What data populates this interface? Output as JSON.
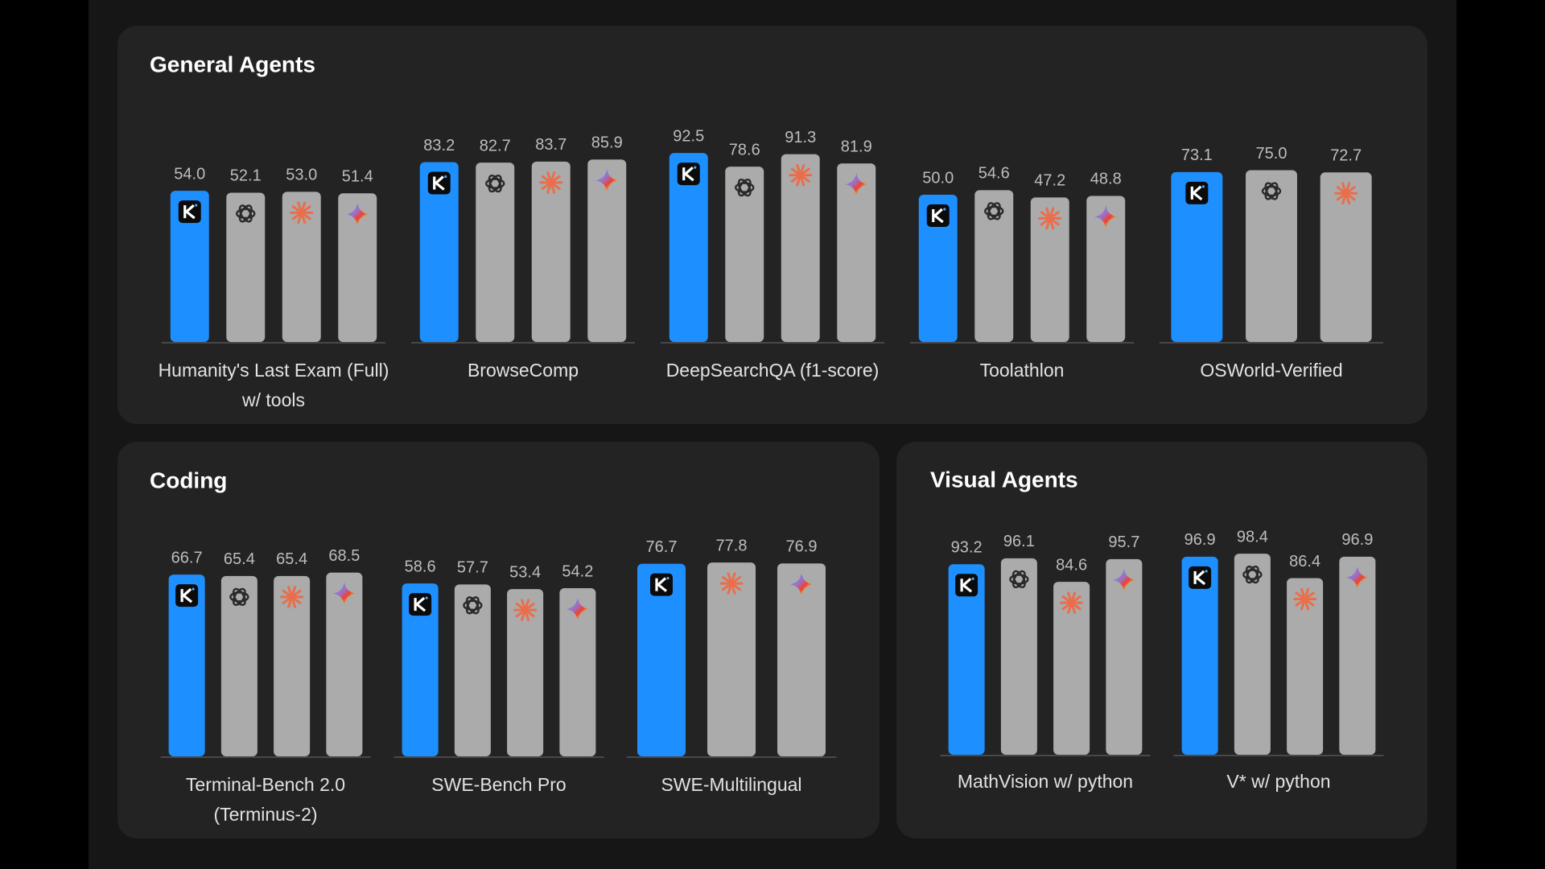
{
  "chart_data": [
    {
      "type": "bar",
      "title": "General Agents",
      "categories": [
        "Humanity's Last Exam (Full)\nw/ tools",
        "BrowseComp",
        "DeepSearchQA (f1-score)",
        "Toolathlon",
        "OSWorld-Verified"
      ],
      "ylim": [
        -100,
        100
      ],
      "series": [
        {
          "color": "#1e8fff",
          "values": [
            54.0,
            83.2,
            92.5,
            50.0,
            73.1
          ],
          "value_labels": [
            "54.0",
            "83.2",
            "92.5",
            "50.0",
            "73.1"
          ]
        },
        {
          "color": "#ababab",
          "values": [
            52.1,
            82.7,
            78.6,
            54.6,
            75.0
          ],
          "value_labels": [
            "52.1",
            "82.7",
            "78.6",
            "54.6",
            "75.0"
          ]
        },
        {
          "color": "#ababab",
          "values": [
            53.0,
            83.7,
            91.3,
            47.2,
            72.7
          ],
          "value_labels": [
            "53.0",
            "83.7",
            "91.3",
            "47.2",
            "72.7"
          ]
        },
        {
          "color": "#ababab",
          "values": [
            51.4,
            85.9,
            81.9,
            48.8,
            null
          ],
          "value_labels": [
            "51.4",
            "85.9",
            "81.9",
            "48.8",
            null
          ]
        }
      ]
    },
    {
      "type": "bar",
      "title": "Coding",
      "categories": [
        "Terminal-Bench 2.0\n(Terminus-2)",
        "SWE-Bench Pro",
        "SWE-Multilingual"
      ],
      "ylim": [
        -100,
        100
      ],
      "series": [
        {
          "color": "#1e8fff",
          "values": [
            66.7,
            58.6,
            76.7
          ],
          "value_labels": [
            "66.7",
            "58.6",
            "76.7"
          ]
        },
        {
          "color": "#ababab",
          "values": [
            65.4,
            57.7,
            null
          ],
          "value_labels": [
            "65.4",
            "57.7",
            null
          ]
        },
        {
          "color": "#ababab",
          "values": [
            65.4,
            53.4,
            77.8
          ],
          "value_labels": [
            "65.4",
            "53.4",
            "77.8"
          ]
        },
        {
          "color": "#ababab",
          "values": [
            68.5,
            54.2,
            76.9
          ],
          "value_labels": [
            "68.5",
            "54.2",
            "76.9"
          ]
        }
      ]
    },
    {
      "type": "bar",
      "title": "Visual Agents",
      "categories": [
        "MathVision w/ python",
        "V* w/ python"
      ],
      "ylim": [
        0,
        100
      ],
      "series": [
        {
          "color": "#1e8fff",
          "values": [
            93.2,
            96.9
          ],
          "value_labels": [
            "93.2",
            "96.9"
          ]
        },
        {
          "color": "#ababab",
          "values": [
            96.1,
            98.4
          ],
          "value_labels": [
            "96.1",
            "98.4"
          ]
        },
        {
          "color": "#ababab",
          "values": [
            84.6,
            86.4
          ],
          "value_labels": [
            "84.6",
            "86.4"
          ]
        },
        {
          "color": "#ababab",
          "values": [
            95.7,
            96.9
          ],
          "value_labels": [
            "95.7",
            "96.9"
          ]
        }
      ]
    }
  ]
}
